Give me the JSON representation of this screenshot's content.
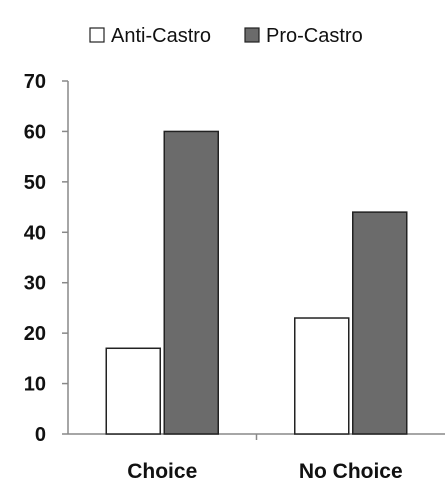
{
  "chart_data": {
    "type": "bar",
    "categories": [
      "Choice",
      "No Choice"
    ],
    "series": [
      {
        "name": "Anti-Castro",
        "values": [
          17,
          23
        ],
        "color": "#ffffff"
      },
      {
        "name": "Pro-Castro",
        "values": [
          60,
          44
        ],
        "color": "#6b6b6b"
      }
    ],
    "title": "",
    "xlabel": "",
    "ylabel": "",
    "ylim": [
      0,
      70
    ],
    "yticks": [
      0,
      10,
      20,
      30,
      40,
      50,
      60,
      70
    ],
    "grid": false,
    "legend": "top",
    "bar_stroke_color": "#222222",
    "axis_color": "#888888"
  }
}
